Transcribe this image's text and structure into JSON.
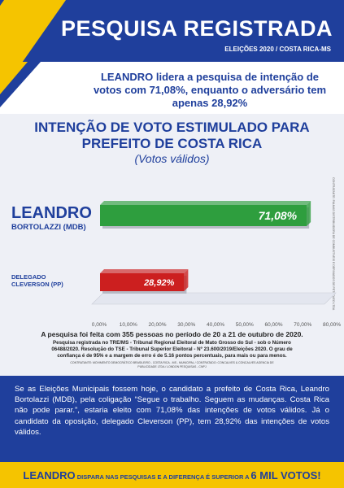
{
  "header": {
    "title": "PESQUISA REGISTRADA",
    "subtitle": "ELEIÇÕES 2020 / COSTA RICA-MS"
  },
  "headline": "LEANDRO lidera a pesquisa de intenção de votos com 71,08%, enquanto o adversário tem apenas 28,92%",
  "chart_title_line1": "INTENÇÃO DE VOTO ESTIMULADO PARA",
  "chart_title_line2": "PREFEITO  DE COSTA RICA",
  "chart_subtitle": "(Votos válidos)",
  "credit_text": "CONTRATANTE: PALMAS DISTRIBUIDORA DE COMBUSTÍVEIS E DERIVADOS DE PETRÓLEO LTDA",
  "chart_data": {
    "type": "bar",
    "orientation": "horizontal",
    "categories": [
      {
        "name": "LEANDRO",
        "detail": "BORTOLAZZI (MDB)"
      },
      {
        "name": "DELEGADO",
        "detail": "CLEVERSON (PP)"
      }
    ],
    "values": [
      71.08,
      28.92
    ],
    "value_labels": [
      "71,08%",
      "28,92%"
    ],
    "colors": [
      "#2e9e3e",
      "#cc1f1f"
    ],
    "xlim": [
      0,
      80
    ],
    "xticks": [
      "0,00%",
      "10,00%",
      "20,00%",
      "30,00%",
      "40,00%",
      "50,00%",
      "60,00%",
      "70,00%",
      "80,00%"
    ],
    "grid": false
  },
  "footnote": {
    "line1": "A pesquisa foi feita com 355 pessoas no período de 20 a 21 de outubro de 2020.",
    "line2": "Pesquisa registrada no TRE/MS - Tribunal Regional Eleitoral de Mato Grosso do Sul - sob o Número 06488/2020. Resolução do TSE - Tribunal Superior Eleitoral - Nº 23.600/2019/Eleições 2020. O grau de confiança é de 95% e a margem de erro é de 5.16 pontos percentuais, para mais ou para menos.",
    "line3": "CONTRATANTE: MOVIMENTO DEMOCRÁTICO BRASILEIRO - COSTA RICA - MS - MUNICIPAL / CONTRATADO: CONCALVES & CONCALVES AGENCIA DE PUBLICIDADE LTDA / LONDON PESQUISAS - CNPJ"
  },
  "description": "Se as Eleições Municipais fossem hoje, o candidato a prefeito de Costa Rica, Leandro Bortolazzi (MDB), pela coligação “Segue o trabalho. Seguem as mudanças. Costa Rica não pode parar.”, estaria eleito com 71,08% das intenções de votos válidos.  Já o candidato da oposição, delegado Cleverson (PP), tem 28,92% das intenções de votos válidos.",
  "bottom_banner": {
    "part1": "LEANDRO",
    "part2": " DISPARA NAS PESQUISAS E A DIFERENÇA É SUPERIOR A ",
    "part3": "6 MIL VOTOS!"
  },
  "colors": {
    "primary_blue": "#1f3f9c",
    "accent_yellow": "#f5c400",
    "leandro_green": "#2e9e3e",
    "cleverson_red": "#cc1f1f"
  }
}
